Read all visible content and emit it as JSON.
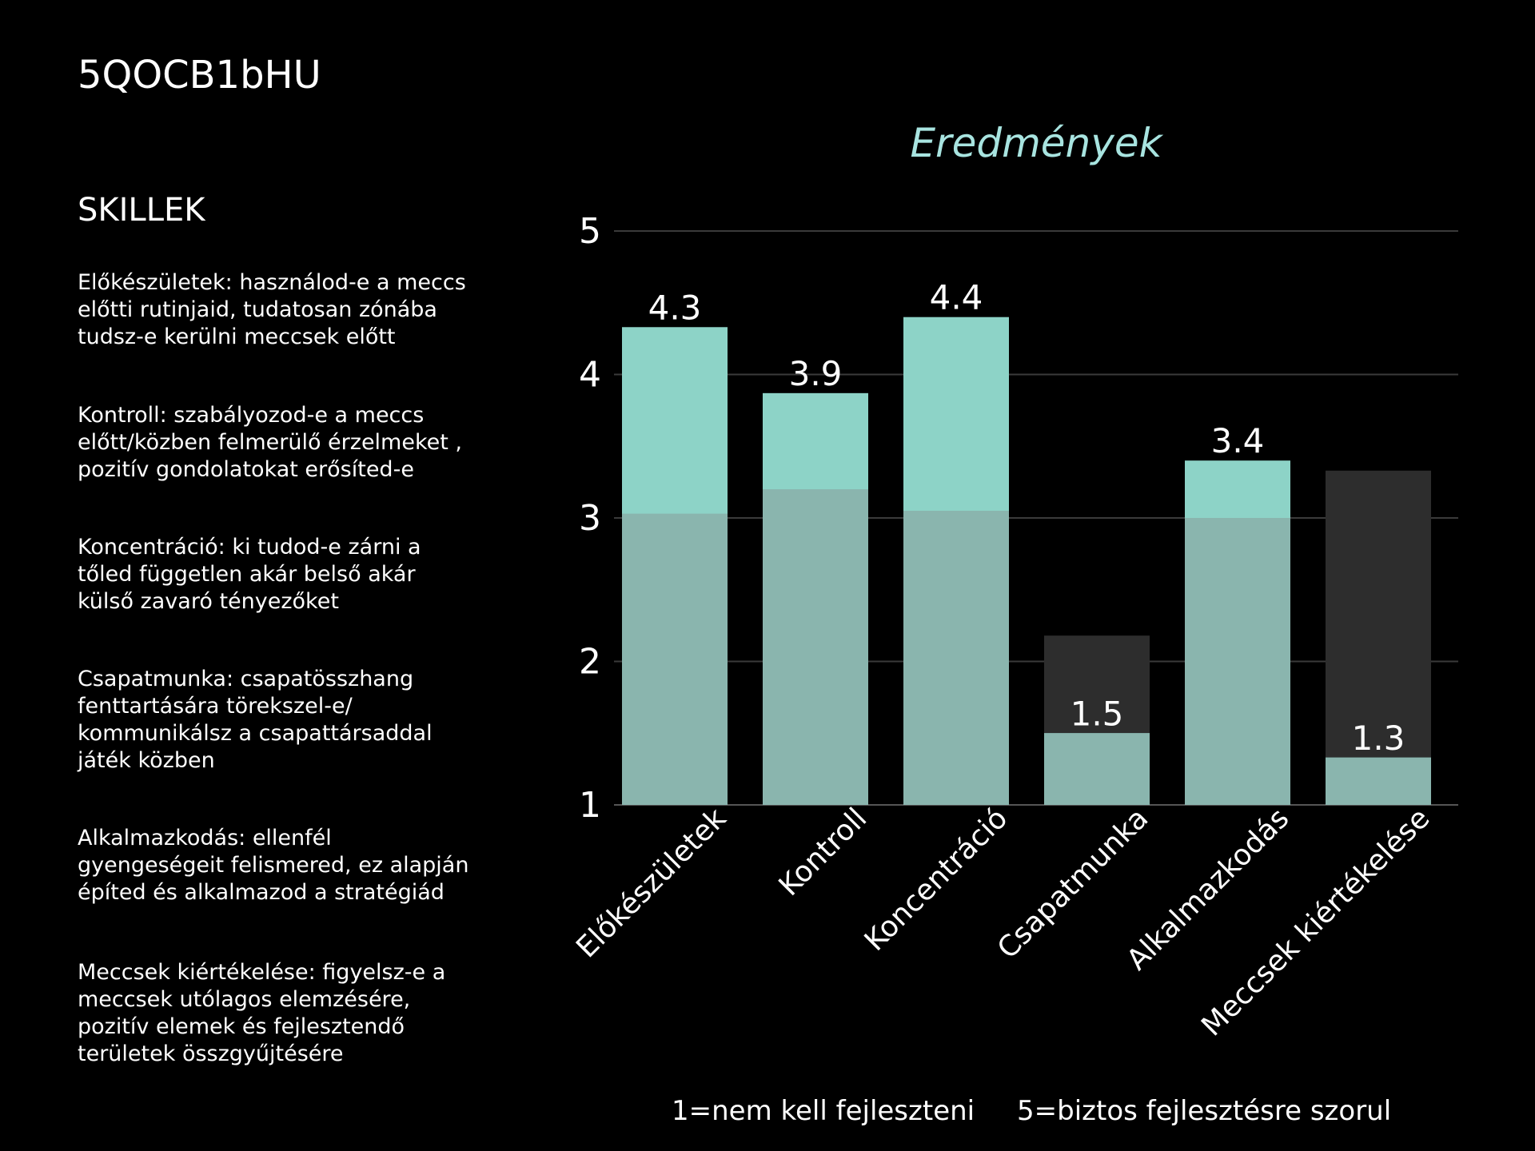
{
  "header": {
    "id_text": "5QOCB1bHU"
  },
  "sidebar": {
    "heading": "SKILLEK",
    "descriptions": [
      "Előkészületek: használod-e a  meccs\nelőtti rutinjaid, tudatosan zónába\ntudsz-e kerülni  meccsek előtt",
      "Kontroll: szabályozod-e a meccs\nelőtt/közben felmerülő érzelmeket ,\npozitív gondolatokat erősíted-e",
      "Koncentráció: ki tudod-e zárni a\ntőled független akár belső akár\nkülső zavaró tényezőket",
      "Csapatmunka: csapatösszhang\nfenttartására törekszel-e/\nkommunikálsz a csapattársaddal\njáték közben",
      "Alkalmazkodás: ellenfél\ngyengeségeit felismered, ez alapján\népíted és alkalmazod a stratégiád",
      "Meccsek kiértékelése: figyelsz-e a\nmeccsek utólagos elemzésére,\npozitív elemek és fejlesztendő\nterületek összgyűjtésére"
    ]
  },
  "footer": {
    "scale_low": "1=nem kell fejleszteni",
    "scale_high": "5=biztos fejlesztésre szorul"
  },
  "chart_data": {
    "type": "bar",
    "title": "Eredmények",
    "xlabel": "",
    "ylabel": "",
    "categories": [
      "Előkészületek",
      "Kontroll",
      "Koncentráció",
      "Csapatmunka",
      "Alkalmazkodás",
      "Meccsek kiértékelése"
    ],
    "series": [
      {
        "role": "background",
        "values": [
          3.03,
          3.2,
          3.05,
          2.18,
          3.0,
          3.33
        ],
        "color": "#2d2d2d"
      },
      {
        "role": "foreground",
        "values": [
          4.33,
          3.87,
          4.4,
          1.5,
          3.4,
          1.33
        ],
        "labels": [
          "4.3",
          "3.9",
          "4.4",
          "1.5",
          "3.4",
          "1.3"
        ],
        "color": "#8dd3c7"
      }
    ],
    "ylim": [
      1,
      5
    ],
    "yticks": [
      "1",
      "2",
      "3",
      "4",
      "5"
    ],
    "grid": true,
    "colors": {
      "title": "#a8e4e0",
      "grid": "#3a3a3a",
      "overlap": "#8ab5ae"
    }
  }
}
